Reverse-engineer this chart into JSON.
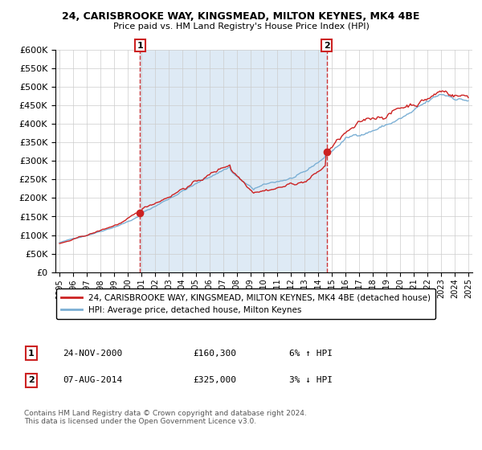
{
  "title_line1": "24, CARISBROOKE WAY, KINGSMEAD, MILTON KEYNES, MK4 4BE",
  "title_line2": "Price paid vs. HM Land Registry's House Price Index (HPI)",
  "legend_label1": "24, CARISBROOKE WAY, KINGSMEAD, MILTON KEYNES, MK4 4BE (detached house)",
  "legend_label2": "HPI: Average price, detached house, Milton Keynes",
  "annotation1_date": "24-NOV-2000",
  "annotation1_price": "£160,300",
  "annotation1_hpi": "6% ↑ HPI",
  "annotation2_date": "07-AUG-2014",
  "annotation2_price": "£325,000",
  "annotation2_hpi": "3% ↓ HPI",
  "footnote": "Contains HM Land Registry data © Crown copyright and database right 2024.\nThis data is licensed under the Open Government Licence v3.0.",
  "purchase1_year": 2000.9,
  "purchase1_value": 160300,
  "purchase2_year": 2014.6,
  "purchase2_value": 325000,
  "ylim": [
    0,
    600000
  ],
  "xlim": [
    1994.7,
    2025.3
  ],
  "hpi_color": "#7bafd4",
  "price_color": "#cc2222",
  "shade_color": "#deeaf5",
  "background_color": "#ffffff",
  "grid_color": "#cccccc"
}
